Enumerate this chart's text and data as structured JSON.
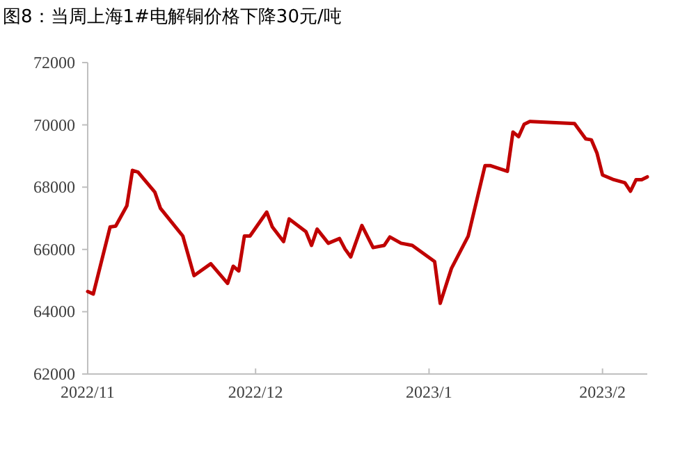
{
  "chart_data": {
    "type": "line",
    "title": "图8：当周上海1#电解铜价格下降30元/吨",
    "x": [
      "2022-11-01",
      "2022-11-02",
      "2022-11-05",
      "2022-11-06",
      "2022-11-08",
      "2022-11-09",
      "2022-11-10",
      "2022-11-13",
      "2022-11-14",
      "2022-11-18",
      "2022-11-20",
      "2022-11-23",
      "2022-11-26",
      "2022-11-27",
      "2022-11-28",
      "2022-11-29",
      "2022-11-30",
      "2022-12-03",
      "2022-12-04",
      "2022-12-06",
      "2022-12-07",
      "2022-12-10",
      "2022-12-11",
      "2022-12-12",
      "2022-12-14",
      "2022-12-16",
      "2022-12-17",
      "2022-12-18",
      "2022-12-20",
      "2022-12-22",
      "2022-12-24",
      "2022-12-25",
      "2022-12-27",
      "2022-12-29",
      "2023-01-02",
      "2023-01-03",
      "2023-01-05",
      "2023-01-08",
      "2023-01-11",
      "2023-01-12",
      "2023-01-15",
      "2023-01-16",
      "2023-01-17",
      "2023-01-18",
      "2023-01-19",
      "2023-01-27",
      "2023-01-29",
      "2023-01-30",
      "2023-01-31",
      "2023-02-01",
      "2023-02-03",
      "2023-02-05",
      "2023-02-06",
      "2023-02-07",
      "2023-02-08",
      "2023-02-09"
    ],
    "series": [
      {
        "color": "#c00000",
        "values": [
          64650,
          64570,
          66720,
          66750,
          67400,
          68540,
          68480,
          67840,
          67320,
          66430,
          65160,
          65540,
          64910,
          65460,
          65310,
          66430,
          66430,
          67200,
          66720,
          66250,
          66980,
          66570,
          66130,
          66650,
          66200,
          66350,
          66010,
          65760,
          66770,
          66060,
          66130,
          66400,
          66200,
          66130,
          65610,
          64270,
          65390,
          66430,
          68690,
          68690,
          68510,
          69770,
          69620,
          70020,
          70110,
          70040,
          69550,
          69520,
          69100,
          68390,
          68240,
          68140,
          67870,
          68240,
          68240,
          68330
        ]
      }
    ],
    "xlim": [
      "2022-11-01",
      "2023-02-09"
    ],
    "xticks": [
      {
        "value": "2022-11-01",
        "label": "2022/11"
      },
      {
        "value": "2022-12-01",
        "label": "2022/12"
      },
      {
        "value": "2023-01-01",
        "label": "2023/1"
      },
      {
        "value": "2023-02-01",
        "label": "2023/2"
      }
    ],
    "ylim": [
      62000,
      72000
    ],
    "yticks": [
      62000,
      64000,
      66000,
      68000,
      70000,
      72000
    ],
    "grid": false,
    "marker": "none",
    "line_style": "solid"
  }
}
